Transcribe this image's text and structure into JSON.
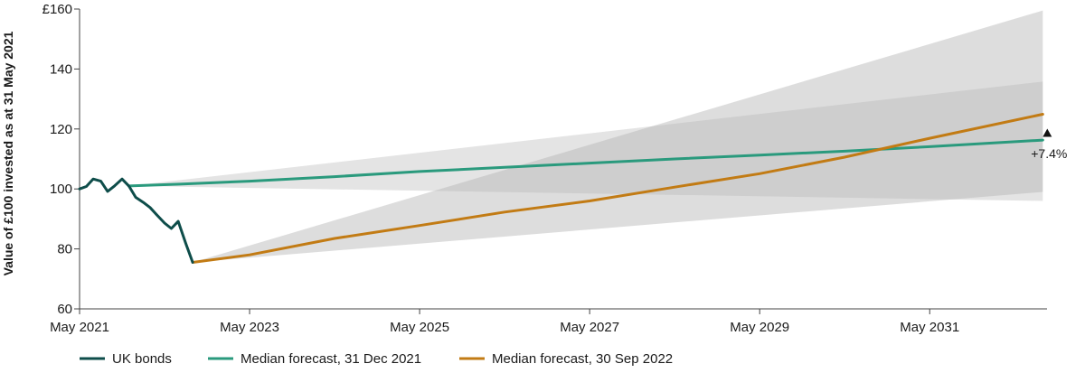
{
  "chart_data": {
    "type": "line",
    "title": "",
    "xlabel": "",
    "ylabel": "Value of £100 invested as at 31 May 2021",
    "y_ticks": [
      "£160",
      "140",
      "120",
      "100",
      "80",
      "60"
    ],
    "y_tick_values": [
      160,
      140,
      120,
      100,
      80,
      60
    ],
    "x_ticks": [
      "May 2021",
      "May 2023",
      "May 2025",
      "May 2027",
      "May 2029",
      "May 2031"
    ],
    "x_tick_values": [
      2021.42,
      2023.42,
      2025.42,
      2027.42,
      2029.42,
      2031.42
    ],
    "xlim": [
      2021.42,
      2032.8
    ],
    "ylim": [
      60,
      160
    ],
    "grid": false,
    "legend_position": "bottom",
    "series": [
      {
        "name": "UK bonds",
        "color": "#0e4d4a",
        "points": [
          [
            2021.42,
            100.0
          ],
          [
            2021.5,
            100.8
          ],
          [
            2021.58,
            103.3
          ],
          [
            2021.67,
            102.6
          ],
          [
            2021.75,
            99.2
          ],
          [
            2021.83,
            101.0
          ],
          [
            2021.92,
            103.3
          ],
          [
            2022.0,
            101.0
          ],
          [
            2022.08,
            97.2
          ],
          [
            2022.17,
            95.5
          ],
          [
            2022.25,
            93.8
          ],
          [
            2022.33,
            91.3
          ],
          [
            2022.42,
            88.6
          ],
          [
            2022.5,
            86.8
          ],
          [
            2022.58,
            89.2
          ],
          [
            2022.67,
            81.8
          ],
          [
            2022.75,
            75.5
          ]
        ]
      },
      {
        "name": "Median forecast, 31 Dec 2021",
        "color": "#2a9a7d",
        "points": [
          [
            2022.0,
            101.0
          ],
          [
            2022.6,
            101.6
          ],
          [
            2023.42,
            102.6
          ],
          [
            2024.42,
            104.1
          ],
          [
            2025.42,
            105.8
          ],
          [
            2026.42,
            107.2
          ],
          [
            2027.42,
            108.6
          ],
          [
            2028.42,
            110.0
          ],
          [
            2029.42,
            111.3
          ],
          [
            2030.42,
            112.6
          ],
          [
            2031.42,
            114.1
          ],
          [
            2032.75,
            116.3
          ]
        ]
      },
      {
        "name": "Median forecast, 30 Sep 2022",
        "color": "#c27b14",
        "points": [
          [
            2022.75,
            75.5
          ],
          [
            2023.42,
            78.0
          ],
          [
            2024.42,
            83.5
          ],
          [
            2025.42,
            87.8
          ],
          [
            2026.42,
            92.3
          ],
          [
            2027.42,
            96.0
          ],
          [
            2028.42,
            100.6
          ],
          [
            2029.42,
            105.1
          ],
          [
            2030.42,
            110.6
          ],
          [
            2031.42,
            116.9
          ],
          [
            2032.75,
            124.9
          ]
        ]
      }
    ],
    "bands": [
      {
        "color": "#e4e4e4",
        "start": [
          2022.0,
          101.0
        ],
        "end_low": 96.0,
        "end_high": 135.8
      },
      {
        "color": "#b3b3b3",
        "start": [
          2022.75,
          75.5
        ],
        "end_low": 99.0,
        "end_high": 159.5
      }
    ],
    "annotation": {
      "label": "+7.4%",
      "x": 2032.75,
      "from_y": 116.3,
      "to_y": 124.9
    }
  }
}
